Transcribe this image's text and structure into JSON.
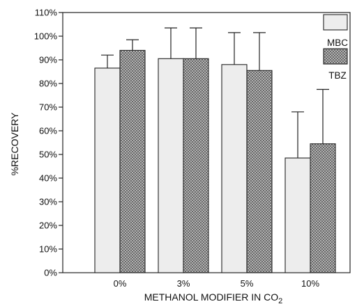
{
  "chart_data": {
    "type": "bar",
    "xlabel_main": "METHANOL MODIFIER IN CO",
    "xlabel_sub": "2",
    "ylabel": "%RECOVERY",
    "ylim": [
      0,
      110
    ],
    "y_ticks": [
      0,
      10,
      20,
      30,
      40,
      50,
      60,
      70,
      80,
      90,
      100,
      110
    ],
    "y_tick_labels": [
      "0%",
      "10%",
      "20%",
      "30%",
      "40%",
      "50%",
      "60%",
      "70%",
      "80%",
      "90%",
      "100%",
      "110%"
    ],
    "categories": [
      "0%",
      "3%",
      "5%",
      "10%"
    ],
    "series": [
      {
        "name": "MBC",
        "values": [
          86.5,
          90.5,
          88,
          48.5
        ],
        "error": [
          5.5,
          13,
          13.5,
          19.5
        ],
        "fill": "light"
      },
      {
        "name": "TBZ",
        "values": [
          94,
          90.5,
          85.5,
          54.5
        ],
        "error": [
          4.5,
          13,
          16,
          23
        ],
        "fill": "crosshatch"
      }
    ],
    "legend_position": "top-right",
    "grid": false
  }
}
